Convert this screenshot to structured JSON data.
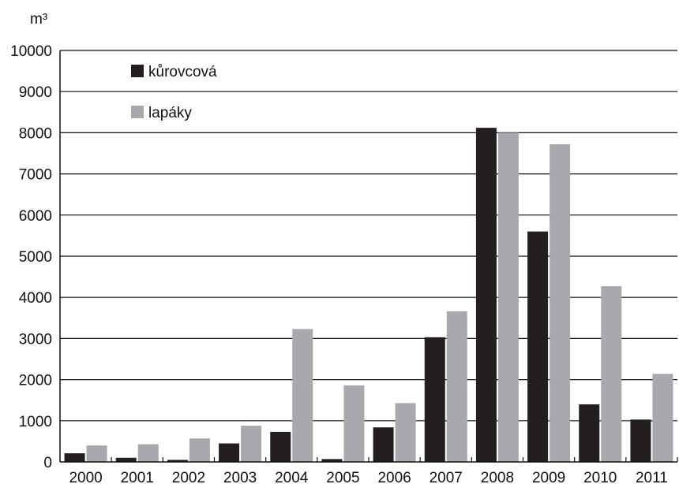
{
  "chart_data": {
    "type": "bar",
    "ylabel": "m³",
    "ylim": [
      0,
      10000
    ],
    "yticks": [
      0,
      1000,
      2000,
      3000,
      4000,
      5000,
      6000,
      7000,
      8000,
      9000,
      10000
    ],
    "grid": true,
    "legend_position": "top-left",
    "categories": [
      "2000",
      "2001",
      "2002",
      "2003",
      "2004",
      "2005",
      "2006",
      "2007",
      "2008",
      "2009",
      "2010",
      "2011"
    ],
    "series": [
      {
        "name": "kůrovcová",
        "color": "#231f20",
        "values": [
          210,
          100,
          50,
          450,
          730,
          70,
          840,
          3030,
          8120,
          5600,
          1400,
          1030
        ]
      },
      {
        "name": "lapáky",
        "color": "#a7a9ac",
        "values": [
          400,
          430,
          570,
          880,
          3230,
          1860,
          1430,
          3660,
          8000,
          7720,
          4270,
          2140
        ]
      }
    ]
  }
}
